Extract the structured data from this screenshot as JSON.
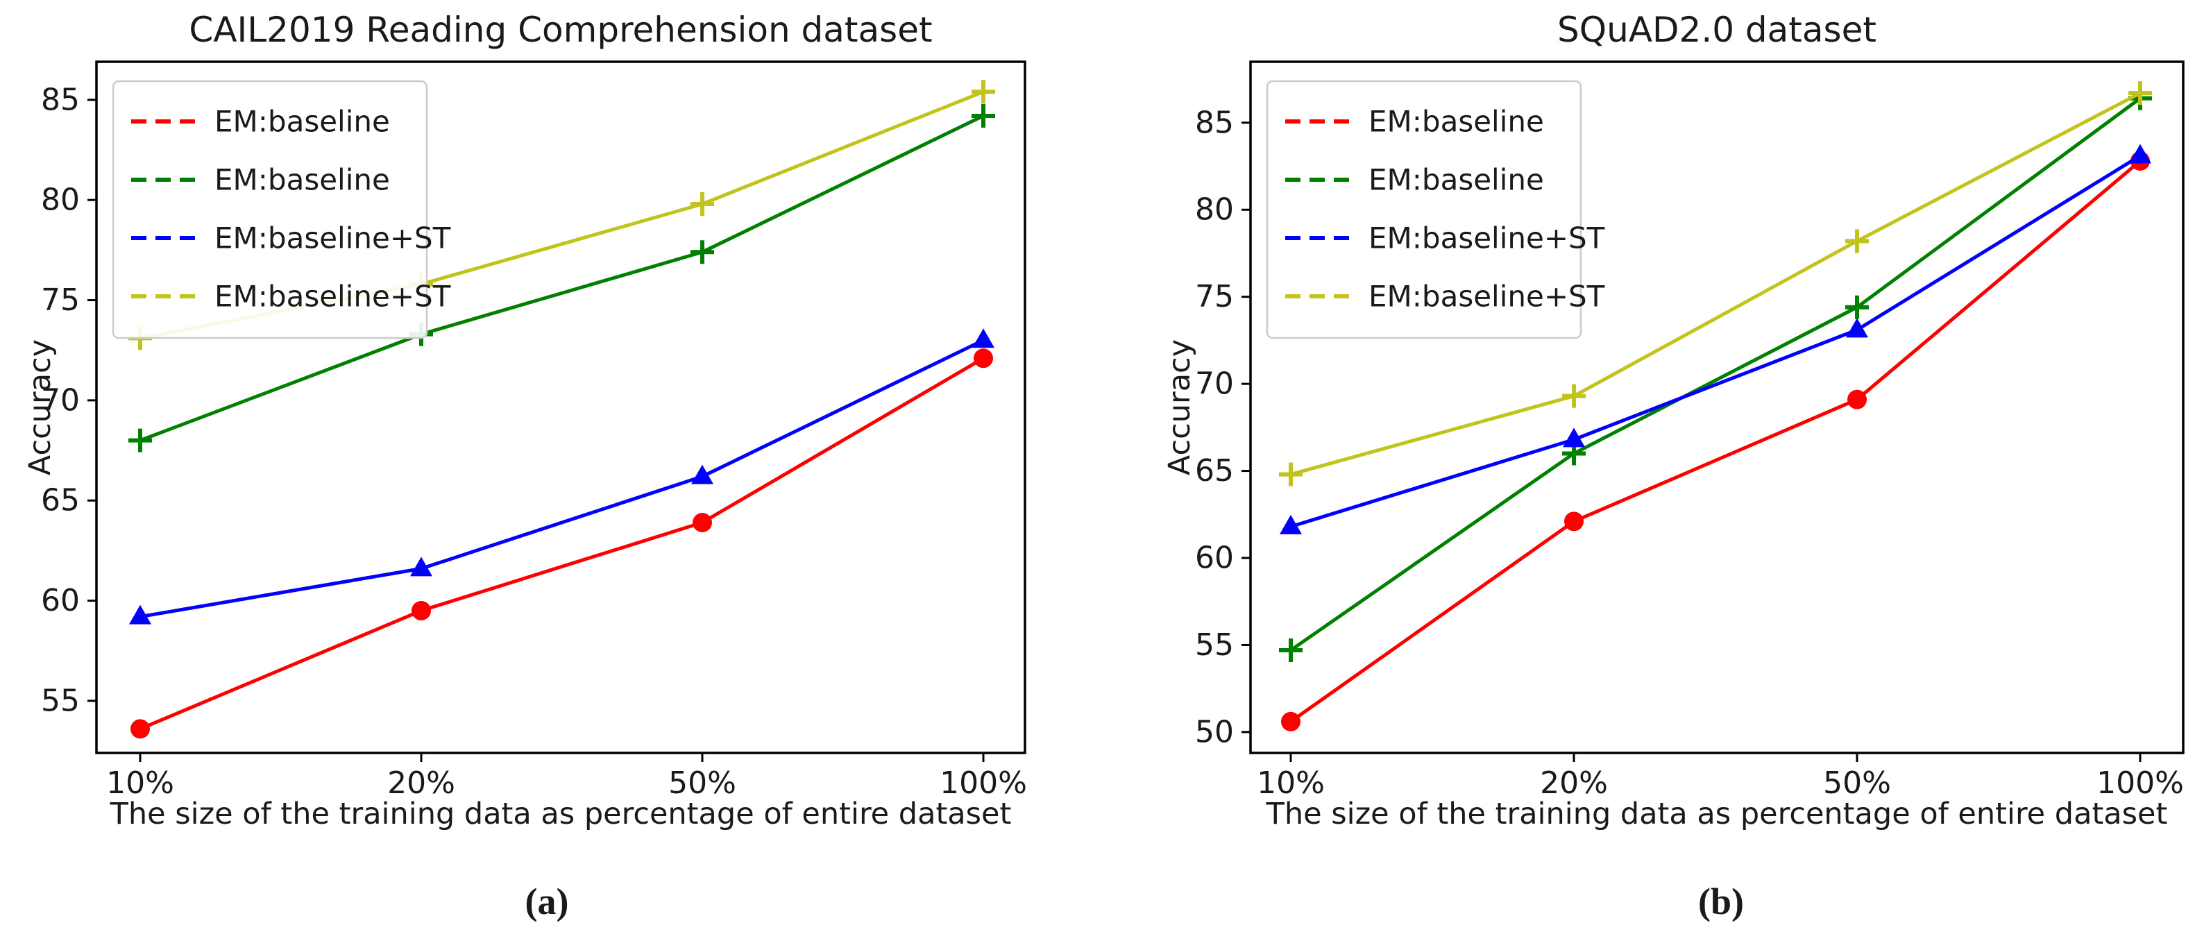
{
  "figure": {
    "captions": {
      "a": "(a)",
      "b": "(b)"
    },
    "background_color": "#ffffff",
    "axis_color": "#000000",
    "text_color": "#1a1a1a",
    "legend_border_color": "#cccccc"
  },
  "chart_data": [
    {
      "type": "line",
      "title": "CAIL2019 Reading Comprehension dataset",
      "xlabel": "The size of the training data as percentage of entire dataset",
      "ylabel": "Accuracy",
      "categories": [
        "10%",
        "20%",
        "50%",
        "100%"
      ],
      "yticks": [
        55,
        60,
        65,
        70,
        75,
        80,
        85
      ],
      "ylim": [
        52.4,
        86.9
      ],
      "grid": false,
      "legend_position": "upper left",
      "legend_linestyle": "dashed",
      "series": [
        {
          "name": "EM:baseline",
          "color": "#ff0000",
          "marker": "circle",
          "values": [
            53.6,
            59.5,
            63.9,
            72.1
          ]
        },
        {
          "name": "EM:baseline",
          "color": "#008000",
          "marker": "plus",
          "values": [
            68.0,
            73.3,
            77.4,
            84.2
          ]
        },
        {
          "name": "EM:baseline+ST",
          "color": "#0000ff",
          "marker": "triangle",
          "values": [
            59.2,
            61.6,
            66.2,
            73.0
          ]
        },
        {
          "name": "EM:baseline+ST",
          "color": "#c3c31d",
          "marker": "plus",
          "values": [
            73.1,
            75.8,
            79.8,
            85.4
          ]
        }
      ]
    },
    {
      "type": "line",
      "title": "SQuAD2.0 dataset",
      "xlabel": "The size of the training data as percentage of entire dataset",
      "ylabel": "Accuracy",
      "categories": [
        "10%",
        "20%",
        "50%",
        "100%"
      ],
      "yticks": [
        50,
        55,
        60,
        65,
        70,
        75,
        80,
        85
      ],
      "ylim": [
        48.8,
        88.5
      ],
      "grid": false,
      "legend_position": "upper left",
      "legend_linestyle": "dashed",
      "series": [
        {
          "name": "EM:baseline",
          "color": "#ff0000",
          "marker": "circle",
          "values": [
            50.6,
            62.1,
            69.1,
            82.8
          ]
        },
        {
          "name": "EM:baseline",
          "color": "#008000",
          "marker": "plus",
          "values": [
            54.7,
            66.0,
            74.4,
            86.4
          ]
        },
        {
          "name": "EM:baseline+ST",
          "color": "#0000ff",
          "marker": "triangle",
          "values": [
            61.8,
            66.8,
            73.1,
            83.1
          ]
        },
        {
          "name": "EM:baseline+ST",
          "color": "#c3c31d",
          "marker": "plus",
          "values": [
            64.8,
            69.3,
            78.2,
            86.7
          ]
        }
      ]
    }
  ]
}
